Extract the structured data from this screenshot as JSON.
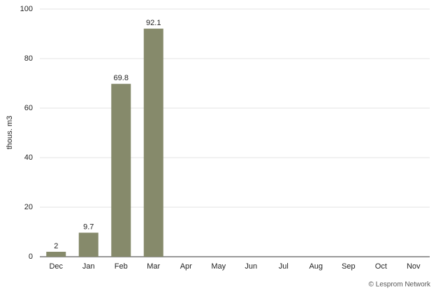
{
  "chart_data": {
    "type": "bar",
    "y_label": "thous. m3",
    "categories": [
      "Dec",
      "Jan",
      "Feb",
      "Mar",
      "Apr",
      "May",
      "Jun",
      "Jul",
      "Aug",
      "Sep",
      "Oct",
      "Nov"
    ],
    "values": [
      2,
      9.7,
      69.8,
      92.1,
      null,
      null,
      null,
      null,
      null,
      null,
      null,
      null
    ],
    "color": "#868a6b",
    "ylim": [
      0,
      100
    ],
    "yticks": [
      0,
      20,
      40,
      60,
      80,
      100
    ],
    "grid": true,
    "data_labels": true,
    "credit": "© Lesprom Network"
  }
}
